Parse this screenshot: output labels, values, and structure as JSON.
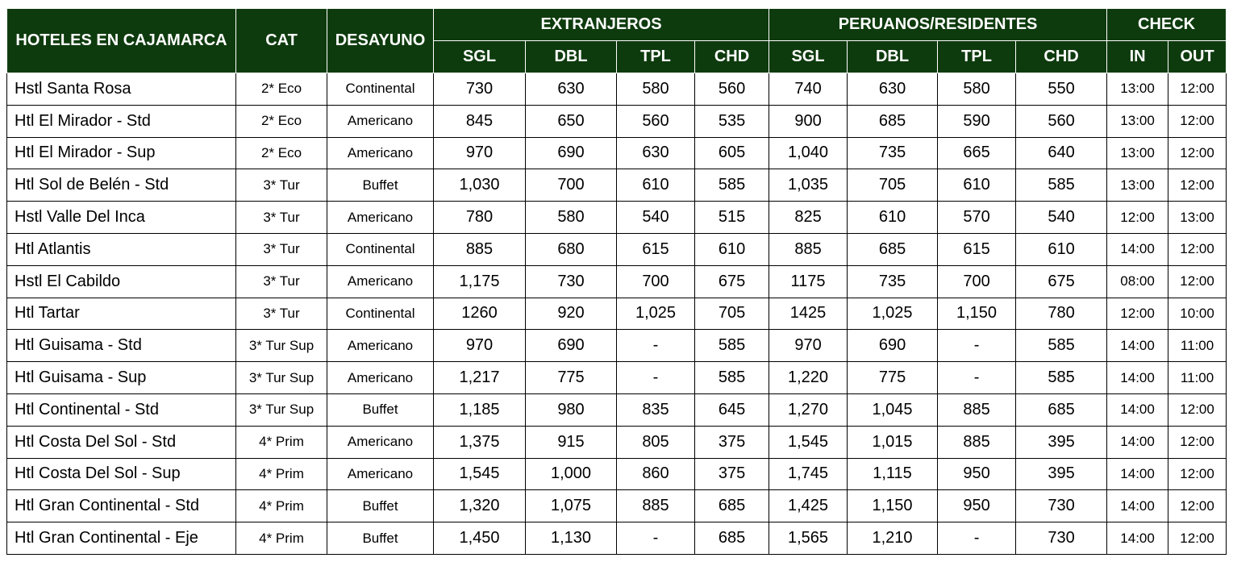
{
  "header": {
    "hotel": "HOTELES EN CAJAMARCA",
    "cat": "CAT",
    "desayuno": "DESAYUNO",
    "group_extranjeros": "EXTRANJEROS",
    "group_peruanos": "PERUANOS/RESIDENTES",
    "group_check": "CHECK",
    "ext_sgl": "SGL",
    "ext_dbl": "DBL",
    "ext_tpl": "TPL",
    "ext_chd": "CHD",
    "per_sgl": "SGL",
    "per_dbl": "DBL",
    "per_tpl": "TPL",
    "per_chd": "CHD",
    "check_in": "IN",
    "check_out": "OUT"
  },
  "colors": {
    "header_bg": "#0e3b0e",
    "header_text": "#ffffff"
  },
  "rows": [
    {
      "hotel": "Hstl Santa Rosa",
      "cat": "2* Eco",
      "desayuno": "Continental",
      "ext": [
        "730",
        "630",
        "580",
        "560"
      ],
      "per": [
        "740",
        "630",
        "580",
        "550"
      ],
      "in": "13:00",
      "out": "12:00"
    },
    {
      "hotel": "Htl El Mirador - Std",
      "cat": "2* Eco",
      "desayuno": "Americano",
      "ext": [
        "845",
        "650",
        "560",
        "535"
      ],
      "per": [
        "900",
        "685",
        "590",
        "560"
      ],
      "in": "13:00",
      "out": "12:00"
    },
    {
      "hotel": "Htl El Mirador - Sup",
      "cat": "2* Eco",
      "desayuno": "Americano",
      "ext": [
        "970",
        "690",
        "630",
        "605"
      ],
      "per": [
        "1,040",
        "735",
        "665",
        "640"
      ],
      "in": "13:00",
      "out": "12:00"
    },
    {
      "hotel": "Htl Sol de Belén - Std",
      "cat": "3* Tur",
      "desayuno": "Buffet",
      "ext": [
        "1,030",
        "700",
        "610",
        "585"
      ],
      "per": [
        "1,035",
        "705",
        "610",
        "585"
      ],
      "in": "13:00",
      "out": "12:00"
    },
    {
      "hotel": "Hstl Valle Del Inca",
      "cat": "3* Tur",
      "desayuno": "Americano",
      "ext": [
        "780",
        "580",
        "540",
        "515"
      ],
      "per": [
        "825",
        "610",
        "570",
        "540"
      ],
      "in": "12:00",
      "out": "13:00"
    },
    {
      "hotel": "Htl Atlantis",
      "cat": "3* Tur",
      "desayuno": "Continental",
      "ext": [
        "885",
        "680",
        "615",
        "610"
      ],
      "per": [
        "885",
        "685",
        "615",
        "610"
      ],
      "in": "14:00",
      "out": "12:00"
    },
    {
      "hotel": "Hstl El Cabildo",
      "cat": "3* Tur",
      "desayuno": "Americano",
      "ext": [
        "1,175",
        "730",
        "700",
        "675"
      ],
      "per": [
        "1175",
        "735",
        "700",
        "675"
      ],
      "in": "08:00",
      "out": "12:00"
    },
    {
      "hotel": "Htl Tartar",
      "cat": "3* Tur",
      "desayuno": "Continental",
      "ext": [
        "1260",
        "920",
        "1,025",
        "705"
      ],
      "per": [
        "1425",
        "1,025",
        "1,150",
        "780"
      ],
      "in": "12:00",
      "out": "10:00"
    },
    {
      "hotel": "Htl Guisama - Std",
      "cat": "3* Tur Sup",
      "desayuno": "Americano",
      "ext": [
        "970",
        "690",
        "-",
        "585"
      ],
      "per": [
        "970",
        "690",
        "-",
        "585"
      ],
      "in": "14:00",
      "out": "11:00"
    },
    {
      "hotel": "Htl Guisama - Sup",
      "cat": "3* Tur Sup",
      "desayuno": "Americano",
      "ext": [
        "1,217",
        "775",
        "-",
        "585"
      ],
      "per": [
        "1,220",
        "775",
        "-",
        "585"
      ],
      "in": "14:00",
      "out": "11:00"
    },
    {
      "hotel": "Htl Continental - Std",
      "cat": "3* Tur Sup",
      "desayuno": "Buffet",
      "ext": [
        "1,185",
        "980",
        "835",
        "645"
      ],
      "per": [
        "1,270",
        "1,045",
        "885",
        "685"
      ],
      "in": "14:00",
      "out": "12:00"
    },
    {
      "hotel": "Htl Costa Del Sol - Std",
      "cat": "4* Prim",
      "desayuno": "Americano",
      "ext": [
        "1,375",
        "915",
        "805",
        "375"
      ],
      "per": [
        "1,545",
        "1,015",
        "885",
        "395"
      ],
      "in": "14:00",
      "out": "12:00"
    },
    {
      "hotel": "Htl Costa Del Sol - Sup",
      "cat": "4* Prim",
      "desayuno": "Americano",
      "ext": [
        "1,545",
        "1,000",
        "860",
        "375"
      ],
      "per": [
        "1,745",
        "1,115",
        "950",
        "395"
      ],
      "in": "14:00",
      "out": "12:00"
    },
    {
      "hotel": "Htl Gran Continental - Std",
      "cat": "4* Prim",
      "desayuno": "Buffet",
      "ext": [
        "1,320",
        "1,075",
        "885",
        "685"
      ],
      "per": [
        "1,425",
        "1,150",
        "950",
        "730"
      ],
      "in": "14:00",
      "out": "12:00"
    },
    {
      "hotel": "Htl Gran Continental - Eje",
      "cat": "4* Prim",
      "desayuno": "Buffet",
      "ext": [
        "1,450",
        "1,130",
        "-",
        "685"
      ],
      "per": [
        "1,565",
        "1,210",
        "-",
        "730"
      ],
      "in": "14:00",
      "out": "12:00"
    }
  ]
}
